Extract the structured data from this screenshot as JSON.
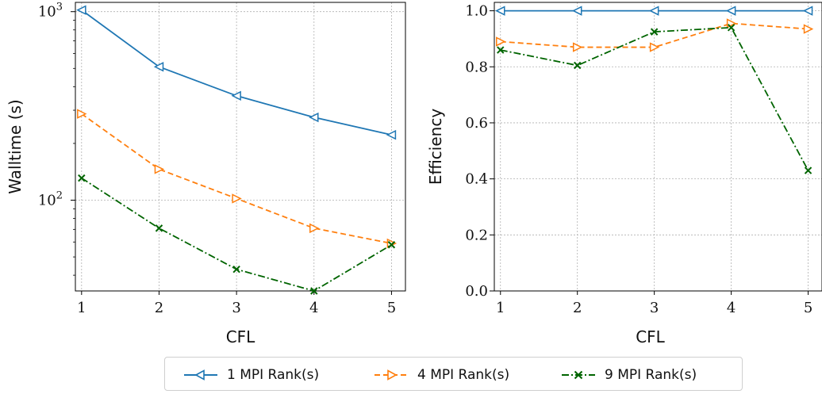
{
  "chart_data": [
    {
      "type": "line",
      "xlabel": "CFL",
      "ylabel": "Walltime (s)",
      "yscale": "log",
      "grid": true,
      "ylim": [
        33,
        1120
      ],
      "xlim": [
        0.92,
        5.18
      ],
      "x": [
        1,
        2,
        3,
        4,
        5
      ],
      "x_ticks": [
        "1",
        "2",
        "3",
        "4",
        "5"
      ],
      "y_ticks": [
        {
          "value": 100,
          "base": "10",
          "exp": "2"
        },
        {
          "value": 1000,
          "base": "10",
          "exp": "3"
        }
      ],
      "series": [
        {
          "name": "1 MPI Rank(s)",
          "values": [
            1020,
            510,
            358,
            275,
            222
          ],
          "color": "#1f77b4",
          "dash": "solid",
          "marker": "triangle-left"
        },
        {
          "name": "4 MPI Rank(s)",
          "values": [
            287,
            146,
            102,
            71,
            59
          ],
          "color": "#ff7f0e",
          "dash": "dashed",
          "marker": "triangle-right"
        },
        {
          "name": "9 MPI Rank(s)",
          "values": [
            131,
            71,
            43,
            33,
            58
          ],
          "color": "#006400",
          "dash": "dashdot",
          "marker": "x"
        }
      ]
    },
    {
      "type": "line",
      "xlabel": "CFL",
      "ylabel": "Efficiency",
      "grid": true,
      "ylim": [
        0,
        1.03
      ],
      "xlim": [
        0.92,
        5.18
      ],
      "x": [
        1,
        2,
        3,
        4,
        5
      ],
      "x_ticks": [
        "1",
        "2",
        "3",
        "4",
        "5"
      ],
      "y_ticks": [
        "0.0",
        "0.2",
        "0.4",
        "0.6",
        "0.8",
        "1.0"
      ],
      "series": [
        {
          "name": "1 MPI Rank(s)",
          "values": [
            1.0,
            1.0,
            1.0,
            1.0,
            1.0
          ],
          "color": "#1f77b4",
          "dash": "solid",
          "marker": "triangle-left"
        },
        {
          "name": "4 MPI Rank(s)",
          "values": [
            0.89,
            0.87,
            0.87,
            0.955,
            0.935
          ],
          "color": "#ff7f0e",
          "dash": "dashed",
          "marker": "triangle-right"
        },
        {
          "name": "9 MPI Rank(s)",
          "values": [
            0.86,
            0.805,
            0.925,
            0.94,
            0.43
          ],
          "color": "#006400",
          "dash": "dashdot",
          "marker": "x"
        }
      ]
    }
  ],
  "legend": {
    "position": "bottom-center",
    "items": [
      {
        "label": "1 MPI Rank(s)",
        "color": "#1f77b4",
        "dash": "solid",
        "marker": "triangle-left"
      },
      {
        "label": "4 MPI Rank(s)",
        "color": "#ff7f0e",
        "dash": "dashed",
        "marker": "triangle-right"
      },
      {
        "label": "9 MPI Rank(s)",
        "color": "#006400",
        "dash": "dashdot",
        "marker": "x"
      }
    ]
  }
}
